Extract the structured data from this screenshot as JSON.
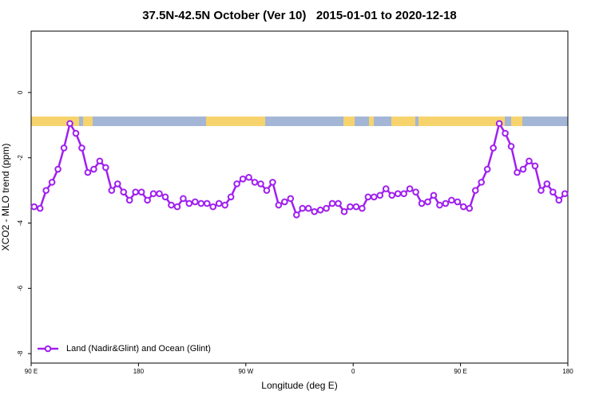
{
  "chart_data": {
    "type": "line",
    "title": "37.5N-42.5N October (Ver 10)   2015-01-01 to 2020-12-18",
    "xlabel": "Longitude (deg E)",
    "ylabel": "XCO2 - MLO trend (ppm)",
    "xlim": [
      90,
      540
    ],
    "ylim": [
      -8.29,
      1.88
    ],
    "xticks": [
      {
        "value": 90,
        "label": "90 E"
      },
      180,
      {
        "value": 270,
        "label": "90 W"
      },
      {
        "value": 360,
        "label": "0"
      },
      {
        "value": 450,
        "label": "90 E"
      },
      {
        "value": 540,
        "label": "180"
      }
    ],
    "yticks": [
      0,
      -2,
      -4,
      -6,
      -8
    ],
    "legend": "bottom-left",
    "x": [
      92.5,
      97.5,
      102.5,
      107.5,
      112.5,
      117.5,
      122.5,
      127.5,
      132.5,
      137.5,
      142.5,
      147.5,
      152.5,
      157.5,
      162.5,
      167.5,
      172.5,
      177.5,
      182.5,
      187.5,
      192.5,
      197.5,
      202.5,
      207.5,
      212.5,
      217.5,
      222.5,
      227.5,
      232.5,
      237.5,
      242.5,
      247.5,
      252.5,
      257.5,
      262.5,
      267.5,
      272.5,
      277.5,
      282.5,
      287.5,
      292.5,
      297.5,
      302.5,
      307.5,
      312.5,
      317.5,
      322.5,
      327.5,
      332.5,
      337.5,
      342.5,
      347.5,
      352.5,
      357.5,
      362.5,
      367.5,
      372.5,
      377.5,
      382.5,
      387.5,
      392.5,
      397.5,
      402.5,
      407.5,
      412.5,
      417.5,
      422.5,
      427.5,
      432.5,
      437.5,
      442.5,
      447.5,
      452.5,
      457.5,
      462.5,
      467.5,
      472.5,
      477.5,
      482.5,
      487.5,
      492.5,
      497.5,
      502.5,
      507.5,
      512.5,
      517.5,
      522.5,
      527.5,
      532.5,
      537.5
    ],
    "series": [
      {
        "name": "Land (Nadir&Glint) and Ocean (Glint)",
        "color": "#a020f0",
        "values": [
          -3.5,
          -3.55,
          -3.0,
          -2.75,
          -2.35,
          -1.7,
          -0.95,
          -1.25,
          -1.7,
          -2.45,
          -2.35,
          -2.1,
          -2.3,
          -3.0,
          -2.8,
          -3.05,
          -3.3,
          -3.05,
          -3.05,
          -3.3,
          -3.1,
          -3.1,
          -3.2,
          -3.45,
          -3.5,
          -3.25,
          -3.4,
          -3.35,
          -3.4,
          -3.4,
          -3.5,
          -3.4,
          -3.45,
          -3.2,
          -2.8,
          -2.65,
          -2.6,
          -2.75,
          -2.8,
          -3.0,
          -2.75,
          -3.45,
          -3.35,
          -3.25,
          -3.75,
          -3.55,
          -3.55,
          -3.65,
          -3.6,
          -3.55,
          -3.4,
          -3.4,
          -3.65,
          -3.5,
          -3.5,
          -3.55,
          -3.2,
          -3.2,
          -3.15,
          -2.95,
          -3.15,
          -3.1,
          -3.1,
          -2.95,
          -3.05,
          -3.4,
          -3.35,
          -3.15,
          -3.45,
          -3.4,
          -3.3,
          -3.35,
          -3.5,
          -3.55,
          -3.0,
          -2.75,
          -2.35,
          -1.7,
          -0.95,
          -1.25,
          -1.65,
          -2.45,
          -2.35,
          -2.1,
          -2.25,
          -3.0,
          -2.8,
          -3.05,
          -3.3,
          -3.1
        ]
      }
    ]
  }
}
